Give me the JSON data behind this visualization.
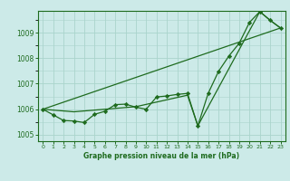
{
  "title": "Graphe pression niveau de la mer (hPa)",
  "bg_color": "#cceae8",
  "grid_color": "#aad4cc",
  "line_color": "#1e6b1e",
  "xlim": [
    -0.5,
    23.5
  ],
  "ylim": [
    1004.75,
    1009.85
  ],
  "yticks": [
    1005,
    1006,
    1007,
    1008,
    1009
  ],
  "xticks": [
    0,
    1,
    2,
    3,
    4,
    5,
    6,
    7,
    8,
    9,
    10,
    11,
    12,
    13,
    14,
    15,
    16,
    17,
    18,
    19,
    20,
    21,
    22,
    23
  ],
  "main_x": [
    0,
    1,
    2,
    3,
    4,
    5,
    6,
    7,
    8,
    9,
    10,
    11,
    12,
    13,
    14,
    15,
    16,
    17,
    18,
    19,
    20,
    21,
    22,
    23
  ],
  "main_y": [
    1006.0,
    1005.78,
    1005.56,
    1005.54,
    1005.48,
    1005.8,
    1005.92,
    1006.18,
    1006.2,
    1006.08,
    1006.0,
    1006.48,
    1006.52,
    1006.58,
    1006.62,
    1005.35,
    1006.62,
    1007.48,
    1008.08,
    1008.58,
    1009.4,
    1009.82,
    1009.48,
    1009.18
  ],
  "line2_x": [
    0,
    23
  ],
  "line2_y": [
    1006.0,
    1009.18
  ],
  "line3_x": [
    0,
    3,
    9,
    14,
    15,
    21,
    22,
    23
  ],
  "line3_y": [
    1006.0,
    1005.9,
    1006.1,
    1006.55,
    1005.35,
    1009.82,
    1009.48,
    1009.18
  ]
}
